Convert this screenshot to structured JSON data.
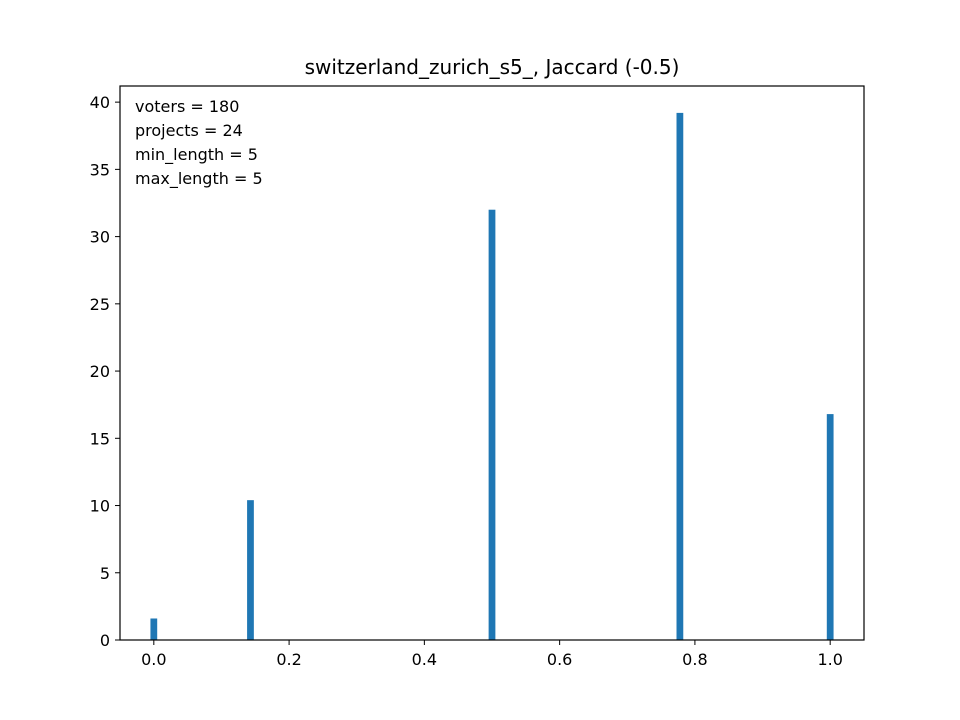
{
  "chart_data": {
    "type": "bar",
    "title": "switzerland_zurich_s5_, Jaccard (-0.5)",
    "xlabel": "",
    "ylabel": "",
    "xlim": [
      -0.05,
      1.05
    ],
    "ylim": [
      0,
      41.2
    ],
    "x_ticks": [
      0.0,
      0.2,
      0.4,
      0.6,
      0.8,
      1.0
    ],
    "x_tick_labels": [
      "0.0",
      "0.2",
      "0.4",
      "0.6",
      "0.8",
      "1.0"
    ],
    "y_ticks": [
      0,
      5,
      10,
      15,
      20,
      25,
      30,
      35,
      40
    ],
    "y_tick_labels": [
      "0",
      "5",
      "10",
      "15",
      "20",
      "25",
      "30",
      "35",
      "40"
    ],
    "bin_width": 0.01,
    "bars": [
      {
        "x": 0.0,
        "value": 1.6
      },
      {
        "x": 0.1429,
        "value": 10.4
      },
      {
        "x": 0.5,
        "value": 32.0
      },
      {
        "x": 0.7778,
        "value": 39.2
      },
      {
        "x": 1.0,
        "value": 16.8
      }
    ],
    "bar_color": "#1f77b4",
    "grid": false,
    "annotations": [
      "voters = 180",
      "projects = 24",
      "min_length = 5",
      "max_length = 5"
    ]
  }
}
